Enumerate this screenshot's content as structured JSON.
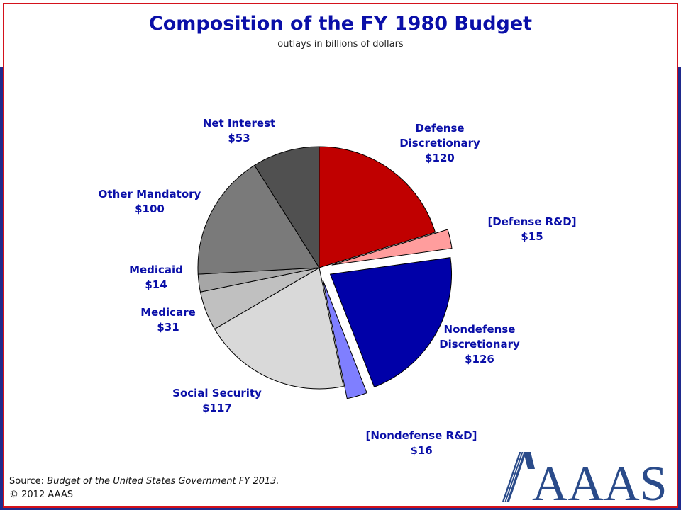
{
  "title": "Composition of the FY 1980 Budget",
  "subtitle": "outlays in billions of dollars",
  "source_prefix": "Source: ",
  "source_title": "Budget of the United States Government FY 2013.",
  "copyright": "© 2012 AAAS",
  "logo_text": "AAAS",
  "colors": {
    "frame": "#d4121b",
    "title": "#0a0fa8",
    "background_band": "#1f2a8c",
    "logo": "#2a4b8a",
    "logo_accent": "#b5121b"
  },
  "chart_data": {
    "type": "pie",
    "title": "Composition of the FY 1980 Budget",
    "subtitle": "outlays in billions of dollars",
    "unit": "billions of dollars",
    "slices": [
      {
        "name": "Defense Discretionary",
        "label_lines": [
          "Defense",
          "Discretionary",
          "$120"
        ],
        "value": 120,
        "color": "#c00000",
        "exploded": false
      },
      {
        "name": "[Defense R&D]",
        "label_lines": [
          "[Defense R&D]",
          "$15"
        ],
        "value": 15,
        "color": "#ff9d9d",
        "exploded": true
      },
      {
        "name": "Nondefense Discretionary",
        "label_lines": [
          "Nondefense",
          "Discretionary",
          "$126"
        ],
        "value": 126,
        "color": "#0000a8",
        "exploded": true
      },
      {
        "name": "[Nondefense R&D]",
        "label_lines": [
          "[Nondefense R&D]",
          "$16"
        ],
        "value": 16,
        "color": "#7f7fff",
        "exploded": true
      },
      {
        "name": "Social Security",
        "label_lines": [
          "Social Security",
          "$117"
        ],
        "value": 117,
        "color": "#d9d9d9",
        "exploded": false
      },
      {
        "name": "Medicare",
        "label_lines": [
          "Medicare",
          "$31"
        ],
        "value": 31,
        "color": "#c0c0c0",
        "exploded": false
      },
      {
        "name": "Medicaid",
        "label_lines": [
          "Medicaid",
          "$14"
        ],
        "value": 14,
        "color": "#a6a6a6",
        "exploded": false
      },
      {
        "name": "Other Mandatory",
        "label_lines": [
          "Other Mandatory",
          "$100"
        ],
        "value": 100,
        "color": "#7a7a7a",
        "exploded": false
      },
      {
        "name": "Net Interest",
        "label_lines": [
          "Net Interest",
          "$53"
        ],
        "value": 53,
        "color": "#505050",
        "exploded": false
      }
    ],
    "legend": "none"
  }
}
